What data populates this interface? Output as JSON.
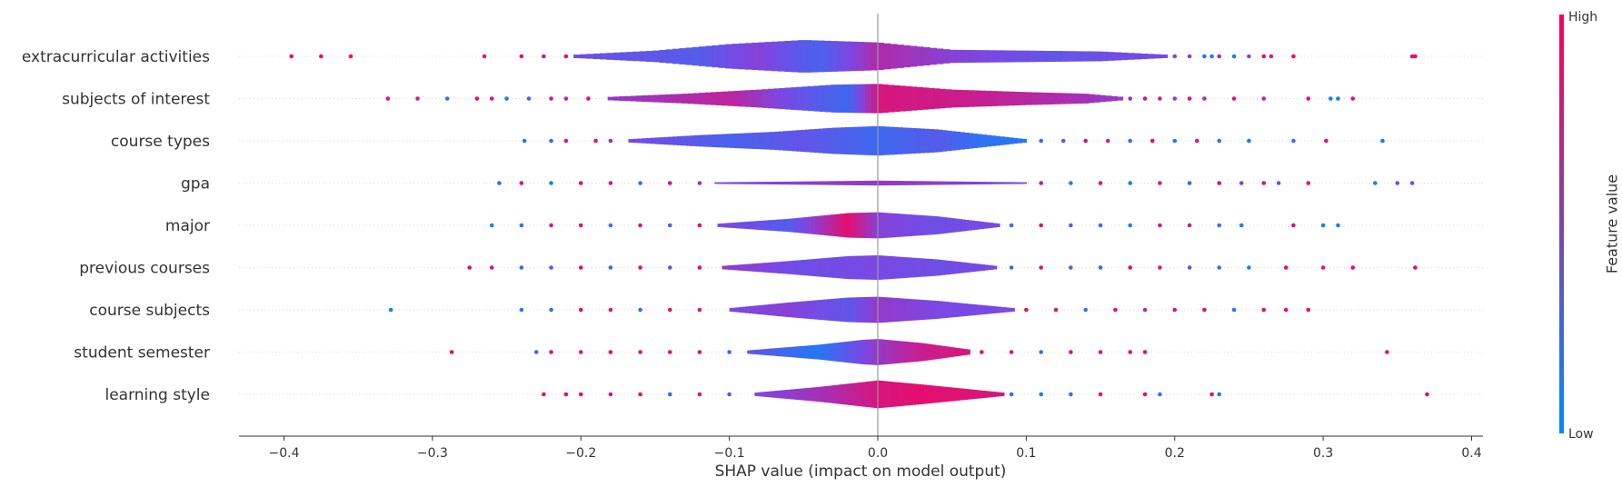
{
  "chart_data": {
    "type": "scatter",
    "subtype": "shap-violin-summary",
    "xlabel": "SHAP value (impact on model output)",
    "xlim": [
      -0.43,
      0.41
    ],
    "xticks": [
      -0.4,
      -0.3,
      -0.2,
      -0.1,
      0.0,
      0.1,
      0.2,
      0.3,
      0.4
    ],
    "xtick_labels": [
      "−0.4",
      "−0.3",
      "−0.2",
      "−0.1",
      "0.0",
      "0.1",
      "0.2",
      "0.3",
      "0.4"
    ],
    "features": [
      {
        "name": "extracurricular activities",
        "violin_range": [
          -0.205,
          0.195
        ],
        "profile": [
          [
            -0.205,
            0.1
          ],
          [
            -0.15,
            0.35
          ],
          [
            -0.1,
            0.75
          ],
          [
            -0.05,
            1.0
          ],
          [
            0.0,
            0.85
          ],
          [
            0.05,
            0.4
          ],
          [
            0.1,
            0.35
          ],
          [
            0.15,
            0.3
          ],
          [
            0.195,
            0.1
          ]
        ],
        "colors": [
          [
            -0.205,
            0.45
          ],
          [
            -0.12,
            0.35
          ],
          [
            -0.08,
            0.55
          ],
          [
            -0.04,
            0.3
          ],
          [
            0.0,
            0.7
          ],
          [
            0.05,
            0.55
          ],
          [
            0.12,
            0.4
          ],
          [
            0.195,
            0.5
          ]
        ],
        "points": [
          [
            -0.395,
            0.95
          ],
          [
            -0.375,
            0.9
          ],
          [
            -0.355,
            0.95
          ],
          [
            -0.265,
            0.85
          ],
          [
            -0.24,
            0.9
          ],
          [
            -0.225,
            0.8
          ],
          [
            -0.21,
            0.85
          ],
          [
            0.2,
            0.5
          ],
          [
            0.21,
            0.6
          ],
          [
            0.22,
            0.2
          ],
          [
            0.225,
            0.1
          ],
          [
            0.23,
            0.7
          ],
          [
            0.24,
            0.1
          ],
          [
            0.25,
            0.5
          ],
          [
            0.26,
            0.9
          ],
          [
            0.265,
            0.8
          ],
          [
            0.28,
            0.95
          ],
          [
            0.36,
            0.95
          ],
          [
            0.362,
            0.9
          ]
        ]
      },
      {
        "name": "subjects of interest",
        "violin_range": [
          -0.182,
          0.165
        ],
        "profile": [
          [
            -0.182,
            0.1
          ],
          [
            -0.13,
            0.3
          ],
          [
            -0.08,
            0.55
          ],
          [
            -0.03,
            0.85
          ],
          [
            0.0,
            0.9
          ],
          [
            0.05,
            0.55
          ],
          [
            0.1,
            0.4
          ],
          [
            0.14,
            0.3
          ],
          [
            0.165,
            0.1
          ]
        ],
        "colors": [
          [
            -0.182,
            0.6
          ],
          [
            -0.1,
            0.75
          ],
          [
            -0.05,
            0.4
          ],
          [
            -0.02,
            0.25
          ],
          [
            0.0,
            0.85
          ],
          [
            0.06,
            0.8
          ],
          [
            0.12,
            0.7
          ],
          [
            0.165,
            0.6
          ]
        ],
        "points": [
          [
            -0.33,
            0.9
          ],
          [
            -0.31,
            0.8
          ],
          [
            -0.29,
            0.2
          ],
          [
            -0.27,
            0.9
          ],
          [
            -0.26,
            0.85
          ],
          [
            -0.25,
            0.1
          ],
          [
            -0.235,
            0.3
          ],
          [
            -0.22,
            0.85
          ],
          [
            -0.21,
            0.7
          ],
          [
            -0.195,
            0.9
          ],
          [
            0.17,
            0.7
          ],
          [
            0.18,
            0.9
          ],
          [
            0.19,
            0.8
          ],
          [
            0.2,
            0.6
          ],
          [
            0.21,
            0.9
          ],
          [
            0.22,
            0.7
          ],
          [
            0.24,
            0.9
          ],
          [
            0.26,
            0.8
          ],
          [
            0.29,
            0.9
          ],
          [
            0.305,
            0.1
          ],
          [
            0.31,
            0.1
          ],
          [
            0.32,
            0.9
          ]
        ]
      },
      {
        "name": "course types",
        "violin_range": [
          -0.168,
          0.1
        ],
        "profile": [
          [
            -0.168,
            0.1
          ],
          [
            -0.12,
            0.35
          ],
          [
            -0.07,
            0.55
          ],
          [
            -0.03,
            0.8
          ],
          [
            0.0,
            0.9
          ],
          [
            0.04,
            0.7
          ],
          [
            0.07,
            0.4
          ],
          [
            0.1,
            0.1
          ]
        ],
        "colors": [
          [
            -0.168,
            0.5
          ],
          [
            -0.1,
            0.3
          ],
          [
            -0.05,
            0.4
          ],
          [
            0.0,
            0.25
          ],
          [
            0.04,
            0.35
          ],
          [
            0.07,
            0.2
          ],
          [
            0.1,
            0.15
          ]
        ],
        "points": [
          [
            -0.238,
            0.1
          ],
          [
            -0.22,
            0.2
          ],
          [
            -0.21,
            0.85
          ],
          [
            -0.19,
            0.9
          ],
          [
            -0.18,
            0.7
          ],
          [
            0.11,
            0.2
          ],
          [
            0.125,
            0.3
          ],
          [
            0.14,
            0.9
          ],
          [
            0.155,
            0.8
          ],
          [
            0.17,
            0.2
          ],
          [
            0.185,
            0.9
          ],
          [
            0.2,
            0.1
          ],
          [
            0.215,
            0.8
          ],
          [
            0.23,
            0.2
          ],
          [
            0.25,
            0.1
          ],
          [
            0.28,
            0.2
          ],
          [
            0.302,
            0.9
          ],
          [
            0.34,
            0.1
          ]
        ]
      },
      {
        "name": "gpa",
        "violin_range": [
          -0.11,
          0.1
        ],
        "profile": [
          [
            -0.11,
            0.05
          ],
          [
            -0.05,
            0.1
          ],
          [
            0.0,
            0.15
          ],
          [
            0.05,
            0.1
          ],
          [
            0.1,
            0.05
          ]
        ],
        "colors": [
          [
            -0.11,
            0.5
          ],
          [
            0.0,
            0.6
          ],
          [
            0.1,
            0.5
          ]
        ],
        "points": [
          [
            -0.255,
            0.2
          ],
          [
            -0.24,
            0.9
          ],
          [
            -0.22,
            0.1
          ],
          [
            -0.2,
            0.9
          ],
          [
            -0.18,
            0.85
          ],
          [
            -0.16,
            0.2
          ],
          [
            -0.14,
            0.9
          ],
          [
            -0.12,
            0.7
          ],
          [
            0.11,
            0.85
          ],
          [
            0.13,
            0.2
          ],
          [
            0.15,
            0.9
          ],
          [
            0.17,
            0.1
          ],
          [
            0.19,
            0.8
          ],
          [
            0.21,
            0.2
          ],
          [
            0.23,
            0.9
          ],
          [
            0.245,
            0.5
          ],
          [
            0.26,
            0.9
          ],
          [
            0.27,
            0.5
          ],
          [
            0.29,
            0.9
          ],
          [
            0.335,
            0.1
          ],
          [
            0.35,
            0.5
          ],
          [
            0.36,
            0.5
          ]
        ]
      },
      {
        "name": "major",
        "violin_range": [
          -0.108,
          0.082
        ],
        "profile": [
          [
            -0.108,
            0.1
          ],
          [
            -0.06,
            0.4
          ],
          [
            -0.02,
            0.75
          ],
          [
            0.0,
            0.8
          ],
          [
            0.04,
            0.55
          ],
          [
            0.082,
            0.1
          ]
        ],
        "colors": [
          [
            -0.108,
            0.5
          ],
          [
            -0.06,
            0.35
          ],
          [
            -0.02,
            0.9
          ],
          [
            0.0,
            0.55
          ],
          [
            0.04,
            0.45
          ],
          [
            0.082,
            0.5
          ]
        ],
        "points": [
          [
            -0.26,
            0.1
          ],
          [
            -0.24,
            0.2
          ],
          [
            -0.22,
            0.85
          ],
          [
            -0.2,
            0.9
          ],
          [
            -0.18,
            0.2
          ],
          [
            -0.16,
            0.85
          ],
          [
            -0.14,
            0.3
          ],
          [
            -0.12,
            0.9
          ],
          [
            0.09,
            0.2
          ],
          [
            0.11,
            0.9
          ],
          [
            0.13,
            0.3
          ],
          [
            0.15,
            0.2
          ],
          [
            0.17,
            0.1
          ],
          [
            0.19,
            0.85
          ],
          [
            0.21,
            0.8
          ],
          [
            0.23,
            0.2
          ],
          [
            0.245,
            0.1
          ],
          [
            0.28,
            0.9
          ],
          [
            0.3,
            0.1
          ],
          [
            0.31,
            0.1
          ]
        ]
      },
      {
        "name": "previous courses",
        "violin_range": [
          -0.105,
          0.08
        ],
        "profile": [
          [
            -0.105,
            0.1
          ],
          [
            -0.06,
            0.4
          ],
          [
            -0.02,
            0.7
          ],
          [
            0.0,
            0.75
          ],
          [
            0.04,
            0.5
          ],
          [
            0.08,
            0.1
          ]
        ],
        "colors": [
          [
            -0.105,
            0.6
          ],
          [
            -0.05,
            0.45
          ],
          [
            0.0,
            0.5
          ],
          [
            0.04,
            0.45
          ],
          [
            0.08,
            0.5
          ]
        ],
        "points": [
          [
            -0.275,
            0.9
          ],
          [
            -0.26,
            0.85
          ],
          [
            -0.24,
            0.2
          ],
          [
            -0.22,
            0.3
          ],
          [
            -0.2,
            0.9
          ],
          [
            -0.18,
            0.2
          ],
          [
            -0.16,
            0.85
          ],
          [
            -0.14,
            0.3
          ],
          [
            -0.12,
            0.9
          ],
          [
            0.09,
            0.2
          ],
          [
            0.11,
            0.85
          ],
          [
            0.13,
            0.3
          ],
          [
            0.15,
            0.2
          ],
          [
            0.17,
            0.9
          ],
          [
            0.19,
            0.8
          ],
          [
            0.21,
            0.3
          ],
          [
            0.23,
            0.2
          ],
          [
            0.25,
            0.1
          ],
          [
            0.275,
            0.9
          ],
          [
            0.3,
            0.85
          ],
          [
            0.32,
            0.9
          ],
          [
            0.362,
            0.95
          ]
        ]
      },
      {
        "name": "course subjects",
        "violin_range": [
          -0.1,
          0.092
        ],
        "profile": [
          [
            -0.1,
            0.1
          ],
          [
            -0.06,
            0.45
          ],
          [
            -0.02,
            0.75
          ],
          [
            0.0,
            0.8
          ],
          [
            0.04,
            0.55
          ],
          [
            0.092,
            0.1
          ]
        ],
        "colors": [
          [
            -0.1,
            0.5
          ],
          [
            -0.06,
            0.55
          ],
          [
            -0.02,
            0.4
          ],
          [
            0.0,
            0.6
          ],
          [
            0.04,
            0.5
          ],
          [
            0.092,
            0.5
          ]
        ],
        "points": [
          [
            -0.328,
            0.1
          ],
          [
            -0.24,
            0.1
          ],
          [
            -0.22,
            0.2
          ],
          [
            -0.2,
            0.9
          ],
          [
            -0.18,
            0.85
          ],
          [
            -0.16,
            0.2
          ],
          [
            -0.14,
            0.9
          ],
          [
            -0.12,
            0.8
          ],
          [
            0.1,
            0.9
          ],
          [
            0.12,
            0.85
          ],
          [
            0.14,
            0.2
          ],
          [
            0.16,
            0.9
          ],
          [
            0.18,
            0.7
          ],
          [
            0.2,
            0.85
          ],
          [
            0.22,
            0.9
          ],
          [
            0.24,
            0.2
          ],
          [
            0.26,
            0.9
          ],
          [
            0.275,
            0.85
          ],
          [
            0.29,
            0.9
          ]
        ]
      },
      {
        "name": "student semester",
        "violin_range": [
          -0.088,
          0.062
        ],
        "profile": [
          [
            -0.088,
            0.1
          ],
          [
            -0.04,
            0.45
          ],
          [
            -0.01,
            0.75
          ],
          [
            0.0,
            0.8
          ],
          [
            0.03,
            0.55
          ],
          [
            0.062,
            0.15
          ]
        ],
        "colors": [
          [
            -0.088,
            0.4
          ],
          [
            -0.04,
            0.15
          ],
          [
            -0.01,
            0.5
          ],
          [
            0.0,
            0.6
          ],
          [
            0.03,
            0.8
          ],
          [
            0.062,
            0.85
          ]
        ],
        "points": [
          [
            -0.287,
            0.9
          ],
          [
            -0.23,
            0.2
          ],
          [
            -0.22,
            0.9
          ],
          [
            -0.2,
            0.85
          ],
          [
            -0.18,
            0.9
          ],
          [
            -0.16,
            0.8
          ],
          [
            -0.14,
            0.9
          ],
          [
            -0.12,
            0.85
          ],
          [
            -0.1,
            0.2
          ],
          [
            0.07,
            0.9
          ],
          [
            0.09,
            0.85
          ],
          [
            0.11,
            0.2
          ],
          [
            0.13,
            0.9
          ],
          [
            0.15,
            0.85
          ],
          [
            0.17,
            0.9
          ],
          [
            0.18,
            0.9
          ],
          [
            0.343,
            0.9
          ]
        ]
      },
      {
        "name": "learning style",
        "violin_range": [
          -0.083,
          0.085
        ],
        "profile": [
          [
            -0.083,
            0.1
          ],
          [
            -0.04,
            0.45
          ],
          [
            0.0,
            0.85
          ],
          [
            0.03,
            0.6
          ],
          [
            0.085,
            0.1
          ]
        ],
        "colors": [
          [
            -0.083,
            0.5
          ],
          [
            -0.04,
            0.65
          ],
          [
            0.0,
            0.85
          ],
          [
            0.03,
            0.9
          ],
          [
            0.085,
            0.85
          ]
        ],
        "points": [
          [
            -0.225,
            0.9
          ],
          [
            -0.21,
            0.85
          ],
          [
            -0.2,
            0.9
          ],
          [
            -0.18,
            0.85
          ],
          [
            -0.16,
            0.9
          ],
          [
            -0.14,
            0.2
          ],
          [
            -0.12,
            0.85
          ],
          [
            -0.1,
            0.3
          ],
          [
            0.09,
            0.2
          ],
          [
            0.11,
            0.1
          ],
          [
            0.13,
            0.2
          ],
          [
            0.15,
            0.9
          ],
          [
            0.18,
            0.85
          ],
          [
            0.19,
            0.2
          ],
          [
            0.225,
            0.9
          ],
          [
            0.23,
            0.1
          ],
          [
            0.37,
            0.9
          ]
        ]
      }
    ],
    "colorbar": {
      "title": "Feature value",
      "high_label": "High",
      "low_label": "Low",
      "low_color": "#008bfb",
      "high_color": "#ff0052"
    },
    "grid": "horizontal dotted per feature",
    "zero_line": true
  }
}
